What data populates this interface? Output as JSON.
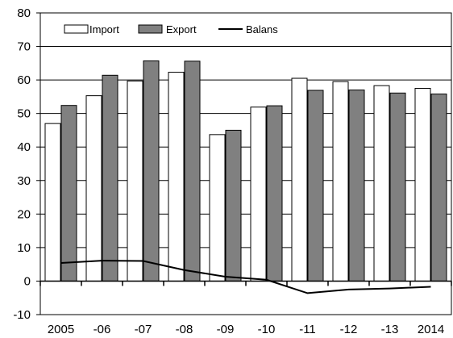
{
  "chart_data": {
    "type": "bar",
    "title": "",
    "xlabel": "",
    "ylabel": "",
    "categories": [
      "2005",
      "-06",
      "-07",
      "-08",
      "-09",
      "-10",
      "-11",
      "-12",
      "-13",
      "2014"
    ],
    "series": [
      {
        "name": "Import",
        "kind": "bar",
        "color": "#ffffff",
        "values": [
          47,
          55.3,
          59.7,
          62.3,
          43.7,
          51.9,
          60.5,
          59.5,
          58.3,
          57.5
        ]
      },
      {
        "name": "Export",
        "kind": "bar",
        "color": "#808080",
        "values": [
          52.4,
          61.4,
          65.7,
          65.6,
          45,
          52.3,
          56.9,
          57,
          56.1,
          55.8
        ]
      },
      {
        "name": "Balans",
        "kind": "line",
        "color": "#000000",
        "values": [
          5.4,
          6.1,
          6,
          3.3,
          1.3,
          0.4,
          -3.6,
          -2.5,
          -2.2,
          -1.7
        ]
      }
    ],
    "ylim": [
      -10,
      80
    ],
    "yticks": [
      -10,
      0,
      10,
      20,
      30,
      40,
      50,
      60,
      70,
      80
    ],
    "grid": true,
    "legend": "top-left"
  }
}
